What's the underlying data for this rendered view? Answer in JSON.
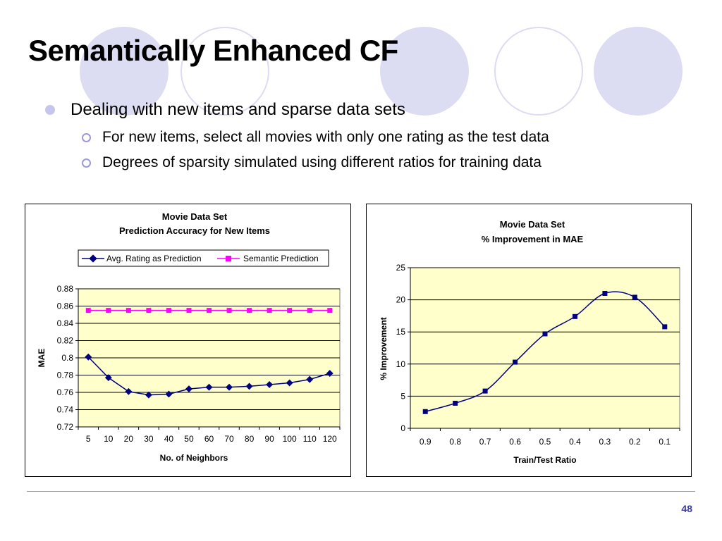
{
  "slide": {
    "title": "Semantically Enhanced CF",
    "bullets": [
      {
        "text": "Dealing with new items and sparse data sets",
        "children": [
          {
            "text": "For new items, select all movies with only one rating as the test data"
          },
          {
            "text": "Degrees of sparsity simulated using different ratios for training data"
          }
        ]
      }
    ],
    "page_number": "48"
  },
  "colors": {
    "plot_area": "#ffffcc",
    "series_navy": "#000080",
    "series_magenta": "#ff00ff",
    "deco_circle": "#dcdcf2",
    "bullet": "#c6c6ec"
  },
  "chart_data": [
    {
      "type": "line",
      "title": "Movie Data Set",
      "subtitle": "Prediction Accuracy for New Items",
      "xlabel": "No. of Neighbors",
      "ylabel": "MAE",
      "categories": [
        "5",
        "10",
        "20",
        "30",
        "40",
        "50",
        "60",
        "70",
        "80",
        "90",
        "100",
        "110",
        "120"
      ],
      "series": [
        {
          "name": "Avg. Rating as Prediction",
          "color": "#000080",
          "marker": "diamond",
          "values": [
            0.801,
            0.777,
            0.761,
            0.757,
            0.758,
            0.764,
            0.766,
            0.766,
            0.767,
            0.769,
            0.771,
            0.775,
            0.782
          ]
        },
        {
          "name": "Semantic Prediction",
          "color": "#ff00ff",
          "marker": "square",
          "values": [
            0.855,
            0.855,
            0.855,
            0.855,
            0.855,
            0.855,
            0.855,
            0.855,
            0.855,
            0.855,
            0.855,
            0.855,
            0.855
          ]
        }
      ],
      "ylim": [
        0.72,
        0.88
      ],
      "yticks": [
        "0.72",
        "0.74",
        "0.76",
        "0.78",
        "0.8",
        "0.82",
        "0.84",
        "0.86",
        "0.88"
      ],
      "grid": true,
      "legend": "top"
    },
    {
      "type": "line",
      "title": "Movie Data Set",
      "subtitle": "% Improvement in MAE",
      "xlabel": "Train/Test Ratio",
      "ylabel": "% Improvement",
      "categories": [
        "0.9",
        "0.8",
        "0.7",
        "0.6",
        "0.5",
        "0.4",
        "0.3",
        "0.2",
        "0.1"
      ],
      "series": [
        {
          "color": "#000080",
          "marker": "square",
          "values": [
            2.6,
            3.9,
            5.8,
            10.3,
            14.7,
            17.4,
            21.0,
            20.4,
            15.8
          ]
        }
      ],
      "ylim": [
        0,
        25
      ],
      "yticks": [
        "0",
        "5",
        "10",
        "15",
        "20",
        "25"
      ],
      "grid": true,
      "legend": "none"
    }
  ]
}
